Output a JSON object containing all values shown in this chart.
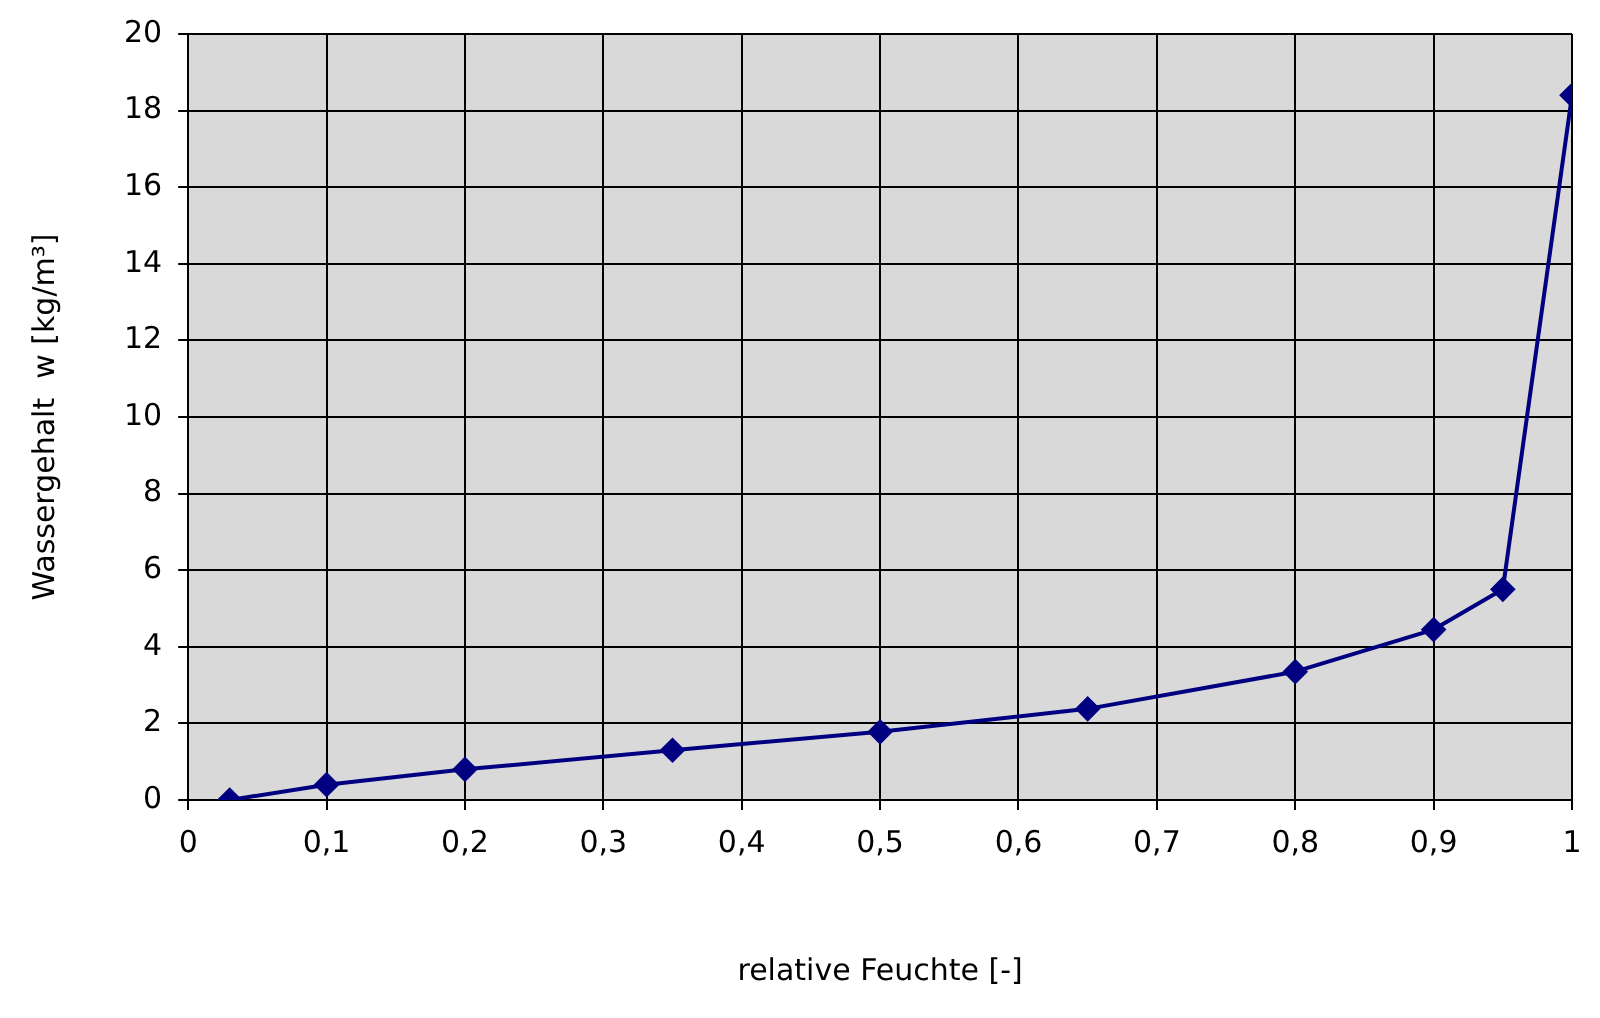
{
  "chart_data": {
    "type": "line",
    "xlabel": "relative Feuchte [-]",
    "ylabel": "Wassergehalt  w [kg/m³]",
    "x": [
      0.03,
      0.1,
      0.2,
      0.35,
      0.5,
      0.65,
      0.8,
      0.9,
      0.95,
      1
    ],
    "series": [
      {
        "color": "#000080",
        "values": [
          0,
          0.4,
          0.8,
          1.3,
          1.78,
          2.38,
          3.35,
          4.45,
          5.5,
          18.4
        ]
      }
    ],
    "xlim": [
      0,
      1
    ],
    "xticks": [
      0,
      {
        "value": 0.1,
        "label": "0,1"
      },
      {
        "value": 0.2,
        "label": "0,2"
      },
      {
        "value": 0.3,
        "label": "0,3"
      },
      {
        "value": 0.4,
        "label": "0,4"
      },
      {
        "value": 0.5,
        "label": "0,5"
      },
      {
        "value": 0.6,
        "label": "0,6"
      },
      {
        "value": 0.7,
        "label": "0,7"
      },
      {
        "value": 0.8,
        "label": "0,8"
      },
      {
        "value": 0.9,
        "label": "0,9"
      },
      1
    ],
    "ylim": [
      0,
      20
    ],
    "yticks": [
      0,
      2,
      4,
      6,
      8,
      10,
      12,
      14,
      16,
      18,
      20
    ],
    "grid": true,
    "legend": false,
    "marker": "diamond",
    "line_style": "solid"
  }
}
